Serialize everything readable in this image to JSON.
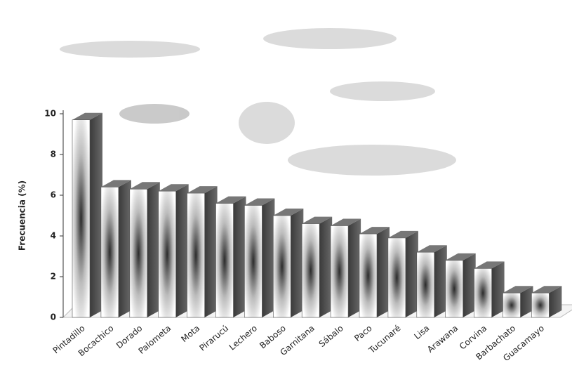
{
  "chart_data": {
    "type": "bar3d",
    "y_label": "Frecuencia (%)",
    "categories": [
      "Pintadillo",
      "Bocachico",
      "Dorado",
      "Palometa",
      "Mota",
      "Pirarucú",
      "Lechero",
      "Baboso",
      "Garnitana",
      "Sábalo",
      "Paco",
      "Tucunaré",
      "Lisa",
      "Arawana",
      "Corvina",
      "Barbachato",
      "Guacamayo"
    ],
    "values": [
      9.7,
      6.4,
      6.3,
      6.2,
      6.1,
      5.6,
      5.5,
      5.0,
      4.6,
      4.5,
      4.1,
      3.9,
      3.2,
      2.8,
      2.4,
      1.2,
      1.2
    ],
    "color": "#4a4a4a",
    "ylim": [
      0,
      10
    ],
    "yticks": [
      0,
      2,
      4,
      6,
      8,
      10
    ]
  }
}
